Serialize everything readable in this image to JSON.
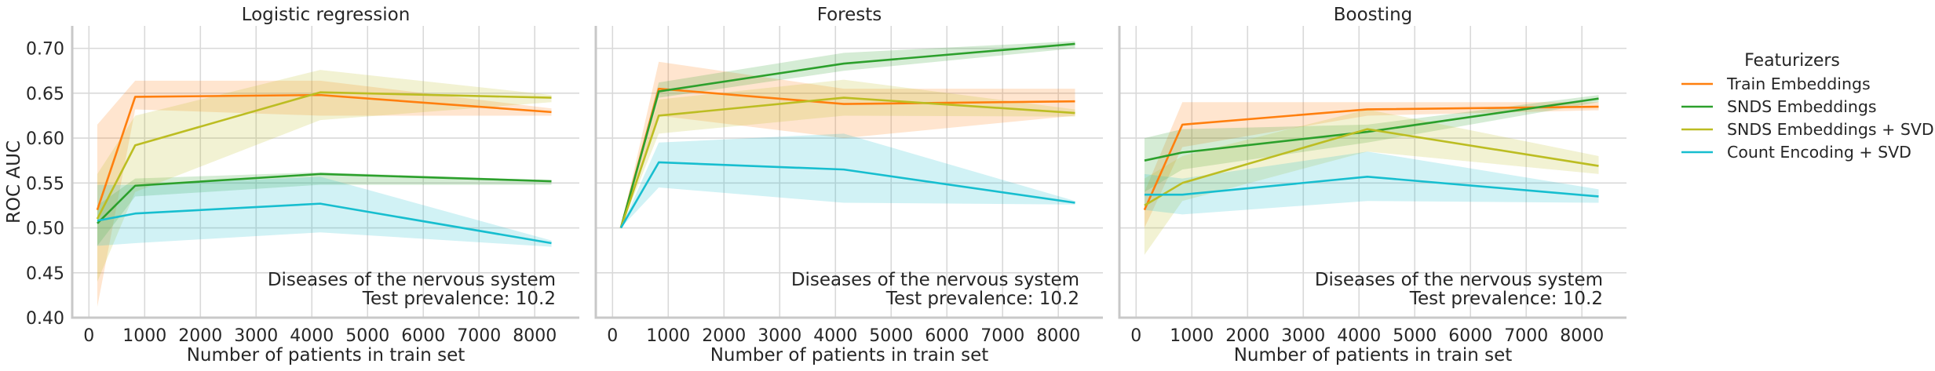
{
  "chart_data": {
    "type": "line",
    "ylabel": "ROC AUC",
    "xlabel": "Number of patients in train set",
    "xlim": [
      -300,
      8800
    ],
    "ylim": [
      0.4,
      0.725
    ],
    "xticks": [
      0,
      1000,
      2000,
      3000,
      4000,
      5000,
      6000,
      7000,
      8000
    ],
    "xtick_labels": [
      "0",
      "1000",
      "2000",
      "3000",
      "4000",
      "5000",
      "6000",
      "7000",
      "8000"
    ],
    "yticks": [
      0.4,
      0.45,
      0.5,
      0.55,
      0.6,
      0.65,
      0.7
    ],
    "ytick_labels": [
      "0.40",
      "0.45",
      "0.50",
      "0.55",
      "0.60",
      "0.65",
      "0.70"
    ],
    "grid": true,
    "legend": {
      "title": "Featurizers",
      "placement": "right",
      "entries": [
        "Train Embeddings",
        "SNDS Embeddings",
        "SNDS Embeddings + SVD",
        "Count Encoding + SVD"
      ]
    },
    "colors": {
      "Train Embeddings": "#ff7f0e",
      "SNDS Embeddings": "#2ca02c",
      "SNDS Embeddings + SVD": "#bcbd22",
      "Count Encoding + SVD": "#17becf"
    },
    "panels": [
      {
        "title": "Logistic regression",
        "annotation": [
          "Diseases of the nervous system",
          "Test prevalence: 10.2"
        ],
        "x": [
          150,
          830,
          4150,
          8300
        ],
        "series": [
          {
            "name": "Train Embeddings",
            "values": [
              0.52,
              0.646,
              0.648,
              0.629
            ],
            "lower": [
              0.412,
              0.632,
              0.625,
              0.625
            ],
            "upper": [
              0.615,
              0.664,
              0.664,
              0.633
            ]
          },
          {
            "name": "SNDS Embeddings",
            "values": [
              0.505,
              0.547,
              0.56,
              0.552
            ],
            "lower": [
              0.48,
              0.535,
              0.548,
              0.548
            ],
            "upper": [
              0.525,
              0.555,
              0.562,
              0.553
            ]
          },
          {
            "name": "SNDS Embeddings + SVD",
            "values": [
              0.51,
              0.592,
              0.651,
              0.645
            ],
            "lower": [
              0.44,
              0.54,
              0.62,
              0.64
            ],
            "upper": [
              0.56,
              0.625,
              0.676,
              0.648
            ]
          },
          {
            "name": "Count Encoding + SVD",
            "values": [
              0.508,
              0.516,
              0.527,
              0.483
            ],
            "lower": [
              0.48,
              0.483,
              0.495,
              0.479
            ],
            "upper": [
              0.548,
              0.548,
              0.557,
              0.486
            ]
          }
        ]
      },
      {
        "title": "Forests",
        "annotation": [
          "Diseases of the nervous system",
          "Test prevalence: 10.2"
        ],
        "x": [
          150,
          830,
          4150,
          8300
        ],
        "series": [
          {
            "name": "Train Embeddings",
            "values": [
              0.5,
              0.655,
              0.638,
              0.641
            ],
            "lower": [
              0.5,
              0.625,
              0.6,
              0.625
            ],
            "upper": [
              0.5,
              0.685,
              0.655,
              0.655
            ]
          },
          {
            "name": "SNDS Embeddings",
            "values": [
              0.5,
              0.652,
              0.683,
              0.705
            ],
            "lower": [
              0.5,
              0.645,
              0.675,
              0.7
            ],
            "upper": [
              0.5,
              0.662,
              0.695,
              0.708
            ]
          },
          {
            "name": "SNDS Embeddings + SVD",
            "values": [
              0.5,
              0.625,
              0.645,
              0.628
            ],
            "lower": [
              0.5,
              0.605,
              0.625,
              0.624
            ],
            "upper": [
              0.5,
              0.643,
              0.665,
              0.632
            ]
          },
          {
            "name": "Count Encoding + SVD",
            "values": [
              0.5,
              0.573,
              0.565,
              0.528
            ],
            "lower": [
              0.5,
              0.545,
              0.528,
              0.526
            ],
            "upper": [
              0.5,
              0.595,
              0.605,
              0.53
            ]
          }
        ]
      },
      {
        "title": "Boosting",
        "annotation": [
          "Diseases of the nervous system",
          "Test prevalence: 10.2"
        ],
        "x": [
          150,
          830,
          4150,
          8300
        ],
        "series": [
          {
            "name": "Train Embeddings",
            "values": [
              0.52,
              0.615,
              0.632,
              0.635
            ],
            "lower": [
              0.5,
              0.59,
              0.625,
              0.631
            ],
            "upper": [
              0.54,
              0.64,
              0.64,
              0.64
            ]
          },
          {
            "name": "SNDS Embeddings",
            "values": [
              0.575,
              0.584,
              0.607,
              0.644
            ],
            "lower": [
              0.54,
              0.565,
              0.595,
              0.64
            ],
            "upper": [
              0.6,
              0.61,
              0.615,
              0.648
            ]
          },
          {
            "name": "SNDS Embeddings + SVD",
            "values": [
              0.525,
              0.55,
              0.61,
              0.569
            ],
            "lower": [
              0.47,
              0.53,
              0.585,
              0.56
            ],
            "upper": [
              0.555,
              0.58,
              0.632,
              0.58
            ]
          },
          {
            "name": "Count Encoding + SVD",
            "values": [
              0.537,
              0.537,
              0.557,
              0.535
            ],
            "lower": [
              0.52,
              0.515,
              0.53,
              0.528
            ],
            "upper": [
              0.56,
              0.555,
              0.585,
              0.543
            ]
          }
        ]
      }
    ]
  }
}
